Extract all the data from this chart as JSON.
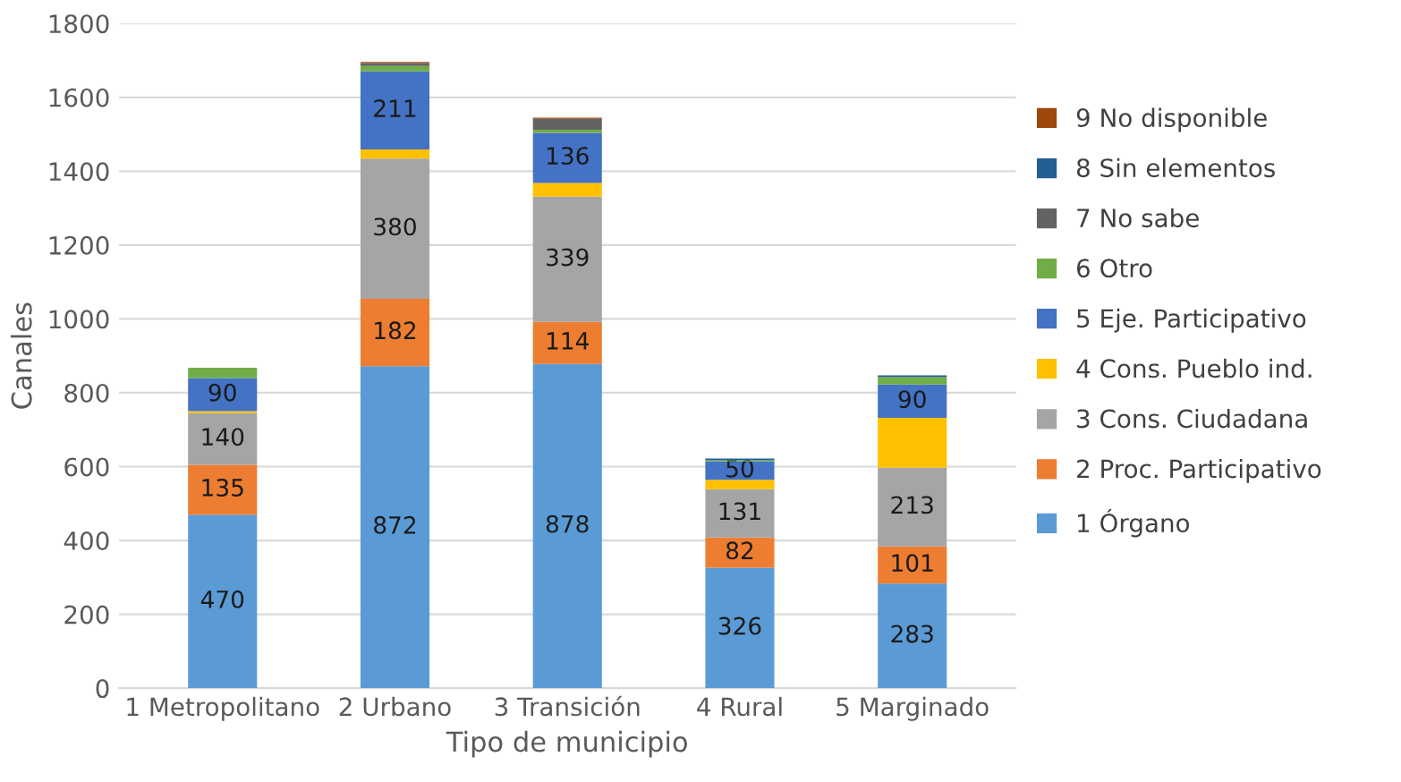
{
  "chart_data": {
    "type": "bar",
    "stacked": true,
    "xlabel": "Tipo de municipio",
    "ylabel": "Canales",
    "categories": [
      "1 Metropolitano",
      "2 Urbano",
      "3 Transición",
      "4 Rural",
      "5 Marginado"
    ],
    "ylim": [
      0,
      1800
    ],
    "yticks": [
      0,
      200,
      400,
      600,
      800,
      1000,
      1200,
      1400,
      1600,
      1800
    ],
    "grid": "y",
    "legend": "right",
    "series": [
      {
        "name": "1 Órgano",
        "color": "#5b9bd5",
        "values": [
          470,
          872,
          878,
          326,
          283
        ],
        "value_labels": [
          "470",
          "872",
          "878",
          "326",
          "283"
        ]
      },
      {
        "name": "2 Proc. Participativo",
        "color": "#ed7d31",
        "values": [
          135,
          182,
          114,
          82,
          101
        ],
        "value_labels": [
          "135",
          "182",
          "114",
          "82",
          "101"
        ]
      },
      {
        "name": "3 Cons. Ciudadana",
        "color": "#a5a5a5",
        "values": [
          140,
          380,
          339,
          131,
          213
        ],
        "value_labels": [
          "140",
          "380",
          "339",
          "131",
          "213"
        ]
      },
      {
        "name": "4 Cons. Pueblo ind.",
        "color": "#ffc000",
        "values": [
          5,
          25,
          37,
          25,
          135
        ]
      },
      {
        "name": "5 Eje. Participativo",
        "color": "#4472c4",
        "values": [
          90,
          211,
          136,
          50,
          90
        ],
        "value_labels": [
          "90",
          "211",
          "136",
          "50",
          "90"
        ]
      },
      {
        "name": "6 Otro",
        "color": "#70ad47",
        "values": [
          28,
          15,
          8,
          3,
          20
        ]
      },
      {
        "name": "7 No sabe",
        "color": "#636363",
        "values": [
          null,
          8,
          30,
          null,
          null
        ]
      },
      {
        "name": "8 Sin elementos",
        "color": "#255e91",
        "values": [
          null,
          null,
          null,
          5,
          5
        ]
      },
      {
        "name": "9 No disponible",
        "color": "#9e480e",
        "values": [
          null,
          3,
          3,
          null,
          null
        ]
      }
    ]
  }
}
